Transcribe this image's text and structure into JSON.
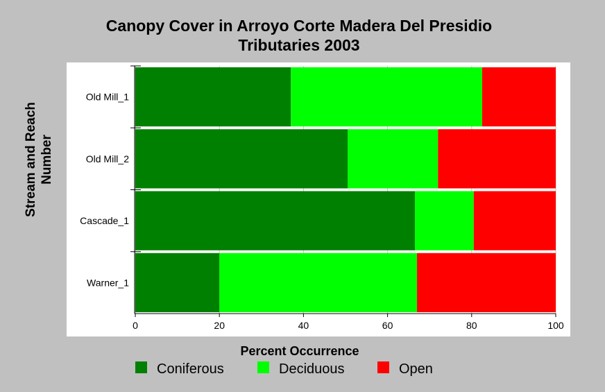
{
  "chart_data": {
    "type": "bar",
    "orientation": "horizontal",
    "stacked": true,
    "title_lines": [
      "Canopy Cover in Arroyo Corte Madera Del Presidio",
      "Tributaries 2003"
    ],
    "xlabel": "Percent Occurrence",
    "ylabel_lines": [
      "Stream and Reach",
      "Number"
    ],
    "xlim": [
      0,
      100
    ],
    "xticks": [
      0,
      20,
      40,
      60,
      80,
      100
    ],
    "categories": [
      "Old Mill_1",
      "Old Mill_2",
      "Cascade_1",
      "Warner_1"
    ],
    "series": [
      {
        "name": "Coniferous",
        "color": "#008000",
        "values": [
          37,
          50.5,
          66.5,
          20
        ]
      },
      {
        "name": "Deciduous",
        "color": "#00ff00",
        "values": [
          45.5,
          21.5,
          14,
          47
        ]
      },
      {
        "name": "Open",
        "color": "#ff0000",
        "values": [
          17.5,
          28,
          19.5,
          33
        ]
      }
    ],
    "grid": true,
    "legend_position": "bottom"
  },
  "colors": {
    "background": "#c0c0c0",
    "plot_background": "#ffffff",
    "grid": "#c0c0c0"
  }
}
